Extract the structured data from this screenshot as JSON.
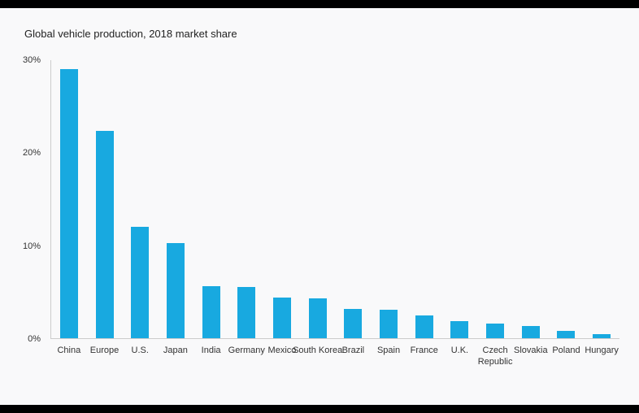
{
  "page": {
    "background_color": "#f9f9fa",
    "frame_color": "#000000"
  },
  "chart_data": {
    "type": "bar",
    "title": "Global vehicle production, 2018 market share",
    "xlabel": "",
    "ylabel": "",
    "categories": [
      "China",
      "Europe",
      "U.S.",
      "Japan",
      "India",
      "Germany",
      "Mexico",
      "South Korea",
      "Brazil",
      "Spain",
      "France",
      "U.K.",
      "Czech Republic",
      "Slovakia",
      "Poland",
      "Hungary"
    ],
    "values": [
      29.0,
      22.4,
      12.0,
      10.3,
      5.6,
      5.5,
      4.4,
      4.3,
      3.2,
      3.1,
      2.5,
      1.8,
      1.6,
      1.3,
      0.8,
      0.4
    ],
    "unit": "%",
    "ylim": [
      0,
      30
    ],
    "yticks": [
      {
        "value": 0,
        "label": "0%"
      },
      {
        "value": 10,
        "label": "10%"
      },
      {
        "value": 20,
        "label": "20%"
      },
      {
        "value": 30,
        "label": "30%"
      }
    ],
    "grid": false,
    "legend_position": "none",
    "bar_color": "#18a9e0",
    "axis_line_color": "#cccccc"
  }
}
